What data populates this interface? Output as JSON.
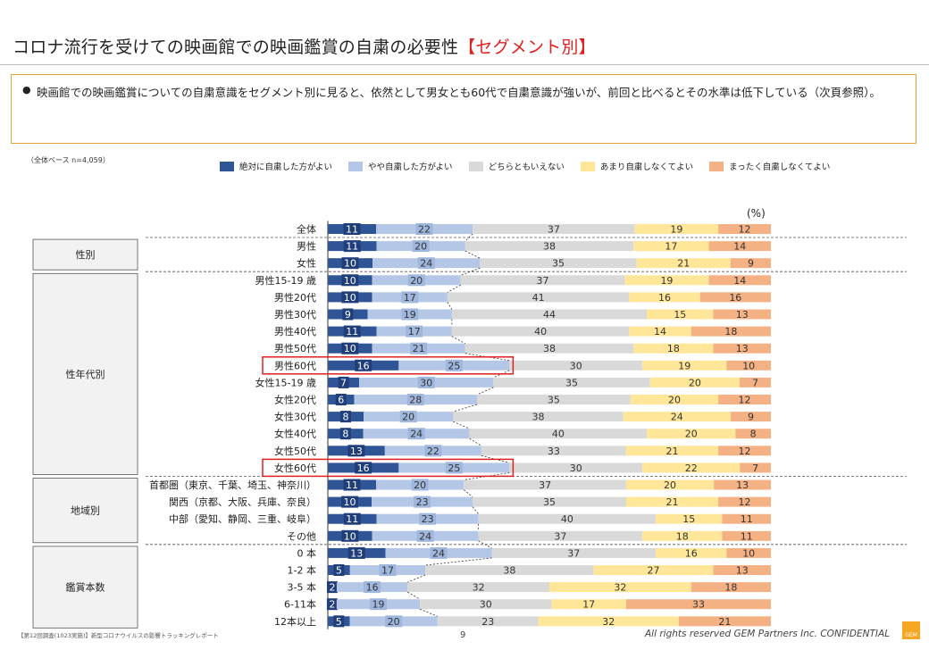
{
  "header": {
    "title_main": "コロナ流行を受けての映画館での映画鑑賞の自粛の必要性",
    "title_highlight": "【セグメント別】"
  },
  "summary": {
    "bullet": "●",
    "text": "映画館での映画鑑賞についての自粛意識をセグメント別に見ると、依然として男女とも60代で自粛意識が強いが、前回と比べるとその水準は低下している（次頁参照）。"
  },
  "colors": {
    "s1": "#2f5597",
    "s2": "#b4c7e7",
    "s3": "#d9d9d9",
    "s4": "#ffe699",
    "s5": "#f4b183",
    "label_bg1": "#1f3e7a",
    "label_bg2": "#9fb6dd",
    "highlight": "#e02020",
    "group_fill": "#f2f2f2"
  },
  "chart_data": {
    "type": "bar",
    "orientation": "horizontal-stacked-100",
    "title": "コロナ流行を受けての映画館での映画鑑賞の自粛の必要性【セグメント別】",
    "base_note": "（全体ベース  n=4,059）",
    "unit": "(%)",
    "series": [
      {
        "name": "絶対に自粛した方がよい"
      },
      {
        "name": "やや自粛した方がよい"
      },
      {
        "name": "どちらともいえない"
      },
      {
        "name": "あまり自粛しなくてよい"
      },
      {
        "name": "まったく自粛しなくてよい"
      }
    ],
    "groups": [
      {
        "name": "性別",
        "from": 1,
        "to": 2
      },
      {
        "name": "性年代別",
        "from": 3,
        "to": 14
      },
      {
        "name": "地域別",
        "from": 15,
        "to": 18
      },
      {
        "name": "鑑賞本数",
        "from": 19,
        "to": 23
      }
    ],
    "rows": [
      {
        "label": "全体",
        "values": [
          11,
          22,
          37,
          19,
          12
        ]
      },
      {
        "label": "男性",
        "values": [
          11,
          20,
          38,
          17,
          14
        ]
      },
      {
        "label": "女性",
        "values": [
          10,
          24,
          35,
          21,
          9
        ]
      },
      {
        "label": "男性15-19 歳",
        "values": [
          10,
          20,
          37,
          19,
          14
        ]
      },
      {
        "label": "男性20代",
        "values": [
          10,
          17,
          41,
          16,
          16
        ]
      },
      {
        "label": "男性30代",
        "values": [
          9,
          19,
          44,
          15,
          13
        ]
      },
      {
        "label": "男性40代",
        "values": [
          11,
          17,
          40,
          14,
          18
        ]
      },
      {
        "label": "男性50代",
        "values": [
          10,
          21,
          38,
          18,
          13
        ]
      },
      {
        "label": "男性60代",
        "values": [
          16,
          25,
          30,
          19,
          10
        ],
        "highlight": true
      },
      {
        "label": "女性15-19 歳",
        "values": [
          7,
          30,
          35,
          20,
          7
        ]
      },
      {
        "label": "女性20代",
        "values": [
          6,
          28,
          35,
          20,
          12
        ]
      },
      {
        "label": "女性30代",
        "values": [
          8,
          20,
          38,
          24,
          9
        ]
      },
      {
        "label": "女性40代",
        "values": [
          8,
          24,
          40,
          20,
          8
        ]
      },
      {
        "label": "女性50代",
        "values": [
          13,
          22,
          33,
          21,
          12
        ]
      },
      {
        "label": "女性60代",
        "values": [
          16,
          25,
          30,
          22,
          7
        ],
        "highlight": true
      },
      {
        "label": "首都圏（東京、千葉、埼玉、神奈川）",
        "values": [
          11,
          20,
          37,
          20,
          13
        ]
      },
      {
        "label": "関西（京都、大阪、兵庫、奈良）",
        "values": [
          10,
          23,
          35,
          21,
          12
        ]
      },
      {
        "label": "中部（愛知、静岡、三重、岐阜）",
        "values": [
          11,
          23,
          40,
          15,
          11
        ]
      },
      {
        "label": "その他",
        "values": [
          10,
          24,
          37,
          18,
          11
        ]
      },
      {
        "label": "0 本",
        "values": [
          13,
          24,
          37,
          16,
          10
        ]
      },
      {
        "label": "1-2 本",
        "values": [
          5,
          17,
          38,
          27,
          13
        ]
      },
      {
        "label": "3-5 本",
        "values": [
          2,
          16,
          32,
          32,
          18
        ]
      },
      {
        "label": "6-11本",
        "values": [
          2,
          19,
          30,
          17,
          33
        ]
      },
      {
        "label": "12本以上",
        "values": [
          5,
          20,
          23,
          32,
          21
        ]
      }
    ]
  },
  "footer": {
    "source": "【第12回調査(1023実施)】新型コロナウイルスの影響トラッキングレポート",
    "page": "9",
    "copyright": "All rights reserved GEM Partners Inc. CONFIDENTIAL",
    "logo_text": "GEM"
  }
}
